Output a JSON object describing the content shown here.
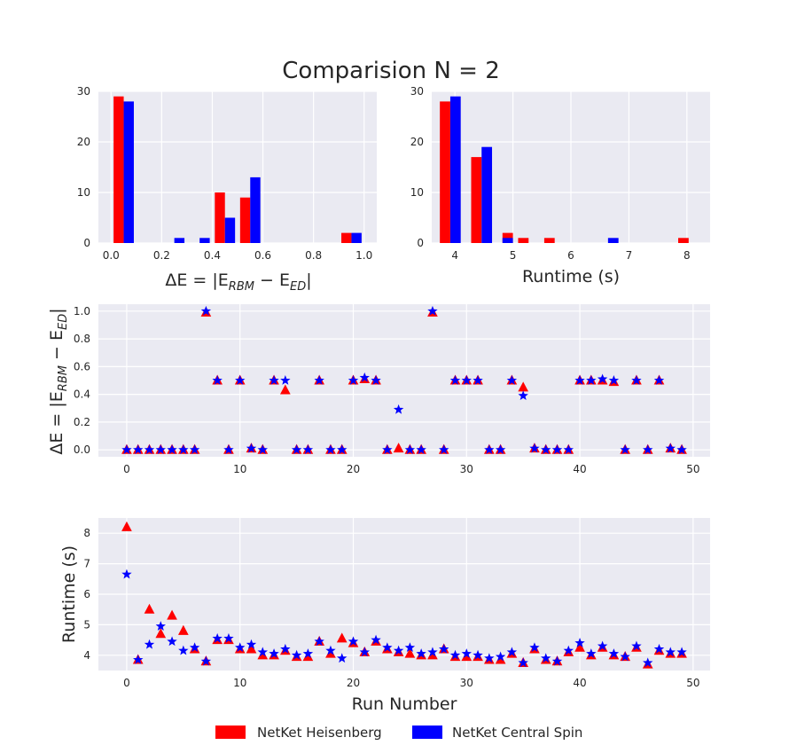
{
  "figure_title": "Comparision N = 2",
  "colors": {
    "heisenberg": "#ff0000",
    "central_spin": "#0000ff",
    "panel_bg": "#eaeaf2",
    "grid": "#ffffff"
  },
  "legend": [
    {
      "label": "NetKet Heisenberg",
      "color": "#ff0000"
    },
    {
      "label": "NetKet Central Spin",
      "color": "#0000ff"
    }
  ],
  "chart_data": [
    {
      "id": "hist_deltaE",
      "type": "bar",
      "xlabel": "ΔE = |E_RBM − E_ED|",
      "xlim": [
        -0.05,
        1.05
      ],
      "ylim": [
        0,
        30
      ],
      "xticks": [
        0.0,
        0.2,
        0.4,
        0.6,
        0.8,
        1.0
      ],
      "xtick_labels": [
        "0.0",
        "0.2",
        "0.4",
        "0.6",
        "0.8",
        "1.0"
      ],
      "yticks": [
        0,
        10,
        20,
        30
      ],
      "series": [
        {
          "name": "NetKet Heisenberg",
          "color": "#ff0000",
          "bars": [
            {
              "x0": 0.01,
              "x1": 0.05,
              "y": 29
            },
            {
              "x0": 0.41,
              "x1": 0.45,
              "y": 10
            },
            {
              "x0": 0.51,
              "x1": 0.55,
              "y": 9
            },
            {
              "x0": 0.91,
              "x1": 0.95,
              "y": 2
            }
          ]
        },
        {
          "name": "NetKet Central Spin",
          "color": "#0000ff",
          "bars": [
            {
              "x0": 0.05,
              "x1": 0.09,
              "y": 28
            },
            {
              "x0": 0.25,
              "x1": 0.29,
              "y": 1
            },
            {
              "x0": 0.35,
              "x1": 0.39,
              "y": 1
            },
            {
              "x0": 0.45,
              "x1": 0.49,
              "y": 5
            },
            {
              "x0": 0.55,
              "x1": 0.59,
              "y": 13
            },
            {
              "x0": 0.95,
              "x1": 0.99,
              "y": 2
            }
          ]
        }
      ]
    },
    {
      "id": "hist_runtime",
      "type": "bar",
      "xlabel": "Runtime (s)",
      "xlim": [
        3.6,
        8.4
      ],
      "ylim": [
        0,
        30
      ],
      "xticks": [
        4,
        5,
        6,
        7,
        8
      ],
      "xtick_labels": [
        "4",
        "5",
        "6",
        "7",
        "8"
      ],
      "yticks": [
        0,
        10,
        20,
        30
      ],
      "series": [
        {
          "name": "NetKet Heisenberg",
          "color": "#ff0000",
          "bars": [
            {
              "x0": 3.74,
              "x1": 3.92,
              "y": 28
            },
            {
              "x0": 4.28,
              "x1": 4.46,
              "y": 17
            },
            {
              "x0": 4.82,
              "x1": 5.0,
              "y": 2
            },
            {
              "x0": 5.09,
              "x1": 5.27,
              "y": 1
            },
            {
              "x0": 5.54,
              "x1": 5.72,
              "y": 1
            },
            {
              "x0": 7.85,
              "x1": 8.03,
              "y": 1
            }
          ]
        },
        {
          "name": "NetKet Central Spin",
          "color": "#0000ff",
          "bars": [
            {
              "x0": 3.92,
              "x1": 4.1,
              "y": 29
            },
            {
              "x0": 4.46,
              "x1": 4.64,
              "y": 19
            },
            {
              "x0": 4.82,
              "x1": 5.0,
              "y": 1
            },
            {
              "x0": 6.64,
              "x1": 6.82,
              "y": 1
            }
          ]
        }
      ]
    },
    {
      "id": "scatter_deltaE",
      "type": "scatter",
      "xlabel": "",
      "ylabel": "ΔE = |E_RBM − E_ED|",
      "xlim": [
        -2.5,
        51.5
      ],
      "ylim": [
        -0.05,
        1.05
      ],
      "xticks": [
        0,
        10,
        20,
        30,
        40,
        50
      ],
      "xtick_labels": [
        "0",
        "10",
        "20",
        "30",
        "40",
        "50"
      ],
      "yticks": [
        0.0,
        0.2,
        0.4,
        0.6,
        0.8,
        1.0
      ],
      "ytick_labels": [
        "0.0",
        "0.2",
        "0.4",
        "0.6",
        "0.8",
        "1.0"
      ],
      "series": [
        {
          "name": "NetKet Heisenberg",
          "color": "#ff0000",
          "marker": "triangle",
          "x": [
            0,
            1,
            2,
            3,
            4,
            5,
            6,
            7,
            8,
            9,
            10,
            11,
            12,
            13,
            14,
            15,
            16,
            17,
            18,
            19,
            20,
            21,
            22,
            23,
            24,
            25,
            26,
            27,
            28,
            29,
            30,
            31,
            32,
            33,
            34,
            35,
            36,
            37,
            38,
            39,
            40,
            41,
            42,
            43,
            44,
            45,
            46,
            47,
            48,
            49
          ],
          "y": [
            0.0,
            0.0,
            0.0,
            0.0,
            0.0,
            0.0,
            0.0,
            0.99,
            0.5,
            0.0,
            0.5,
            0.01,
            0.0,
            0.5,
            0.43,
            0.0,
            0.0,
            0.5,
            0.0,
            0.0,
            0.5,
            0.51,
            0.5,
            0.0,
            0.01,
            0.0,
            0.0,
            0.99,
            0.0,
            0.5,
            0.5,
            0.5,
            0.0,
            0.0,
            0.5,
            0.45,
            0.01,
            0.0,
            0.0,
            0.0,
            0.5,
            0.5,
            0.5,
            0.49,
            0.0,
            0.5,
            0.0,
            0.5,
            0.01,
            0.0
          ]
        },
        {
          "name": "NetKet Central Spin",
          "color": "#0000ff",
          "marker": "star",
          "x": [
            0,
            1,
            2,
            3,
            4,
            5,
            6,
            7,
            8,
            9,
            10,
            11,
            12,
            13,
            14,
            15,
            16,
            17,
            18,
            19,
            20,
            21,
            22,
            23,
            24,
            25,
            26,
            27,
            28,
            29,
            30,
            31,
            32,
            33,
            34,
            35,
            36,
            37,
            38,
            39,
            40,
            41,
            42,
            43,
            44,
            45,
            46,
            47,
            48,
            49
          ],
          "y": [
            0.0,
            0.0,
            0.0,
            0.0,
            0.0,
            0.0,
            0.0,
            1.0,
            0.5,
            0.0,
            0.5,
            0.01,
            0.0,
            0.5,
            0.5,
            0.0,
            0.0,
            0.5,
            0.0,
            0.0,
            0.5,
            0.52,
            0.5,
            0.0,
            0.29,
            0.0,
            0.0,
            1.0,
            0.0,
            0.5,
            0.5,
            0.5,
            0.0,
            0.0,
            0.5,
            0.39,
            0.01,
            0.0,
            0.0,
            0.0,
            0.5,
            0.5,
            0.51,
            0.5,
            0.0,
            0.5,
            0.0,
            0.5,
            0.01,
            0.0
          ]
        }
      ]
    },
    {
      "id": "scatter_runtime",
      "type": "scatter",
      "xlabel": "Run Number",
      "ylabel": "Runtime (s)",
      "xlim": [
        -2.5,
        51.5
      ],
      "ylim": [
        3.5,
        8.5
      ],
      "xticks": [
        0,
        10,
        20,
        30,
        40,
        50
      ],
      "xtick_labels": [
        "0",
        "10",
        "20",
        "30",
        "40",
        "50"
      ],
      "yticks": [
        4,
        5,
        6,
        7,
        8
      ],
      "ytick_labels": [
        "4",
        "5",
        "6",
        "7",
        "8"
      ],
      "series": [
        {
          "name": "NetKet Heisenberg",
          "color": "#ff0000",
          "marker": "triangle",
          "x": [
            0,
            1,
            2,
            3,
            4,
            5,
            6,
            7,
            8,
            9,
            10,
            11,
            12,
            13,
            14,
            15,
            16,
            17,
            18,
            19,
            20,
            21,
            22,
            23,
            24,
            25,
            26,
            27,
            28,
            29,
            30,
            31,
            32,
            33,
            34,
            35,
            36,
            37,
            38,
            39,
            40,
            41,
            42,
            43,
            44,
            45,
            46,
            47,
            48,
            49
          ],
          "y": [
            8.2,
            3.85,
            5.5,
            4.7,
            5.3,
            4.8,
            4.2,
            3.8,
            4.5,
            4.5,
            4.2,
            4.2,
            4.0,
            4.0,
            4.15,
            3.95,
            3.95,
            4.45,
            4.05,
            4.55,
            4.4,
            4.1,
            4.45,
            4.2,
            4.1,
            4.05,
            4.0,
            4.0,
            4.2,
            3.95,
            3.95,
            3.95,
            3.85,
            3.85,
            4.05,
            3.75,
            4.2,
            3.85,
            3.8,
            4.1,
            4.25,
            4.0,
            4.25,
            4.0,
            3.95,
            4.25,
            3.7,
            4.15,
            4.05,
            4.05
          ]
        },
        {
          "name": "NetKet Central Spin",
          "color": "#0000ff",
          "marker": "star",
          "x": [
            0,
            1,
            2,
            3,
            4,
            5,
            6,
            7,
            8,
            9,
            10,
            11,
            12,
            13,
            14,
            15,
            16,
            17,
            18,
            19,
            20,
            21,
            22,
            23,
            24,
            25,
            26,
            27,
            28,
            29,
            30,
            31,
            32,
            33,
            34,
            35,
            36,
            37,
            38,
            39,
            40,
            41,
            42,
            43,
            44,
            45,
            46,
            47,
            48,
            49
          ],
          "y": [
            6.65,
            3.85,
            4.35,
            4.95,
            4.45,
            4.15,
            4.25,
            3.8,
            4.55,
            4.55,
            4.25,
            4.35,
            4.1,
            4.05,
            4.2,
            4.0,
            4.05,
            4.45,
            4.15,
            3.9,
            4.45,
            4.1,
            4.5,
            4.25,
            4.15,
            4.25,
            4.05,
            4.1,
            4.2,
            4.0,
            4.05,
            4.0,
            3.9,
            3.95,
            4.1,
            3.75,
            4.25,
            3.9,
            3.8,
            4.15,
            4.4,
            4.05,
            4.3,
            4.05,
            3.95,
            4.3,
            3.75,
            4.2,
            4.1,
            4.1
          ]
        }
      ]
    }
  ]
}
